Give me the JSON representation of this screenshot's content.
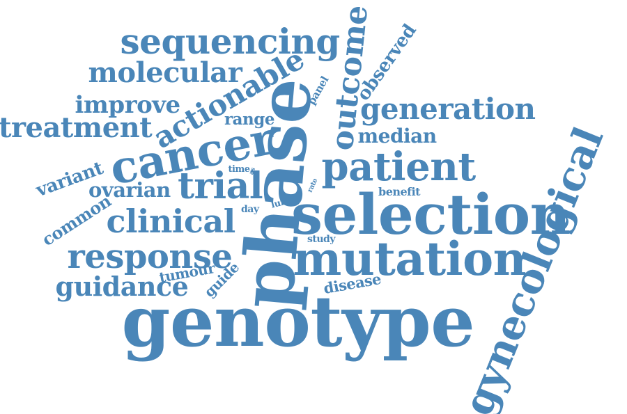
{
  "color": "#4a86b8",
  "words": [
    {
      "key": "genotype",
      "text": "genotype"
    },
    {
      "key": "selection",
      "text": "selection"
    },
    {
      "key": "phase",
      "text": "phase"
    },
    {
      "key": "mutation",
      "text": "mutation"
    },
    {
      "key": "gynecological",
      "text": "gynecological"
    },
    {
      "key": "cancer",
      "text": "cancer"
    },
    {
      "key": "patient",
      "text": "patient"
    },
    {
      "key": "sequencing",
      "text": "sequencing"
    },
    {
      "key": "response",
      "text": "response"
    },
    {
      "key": "trial",
      "text": "trial"
    },
    {
      "key": "clinical",
      "text": "clinical"
    },
    {
      "key": "actionable",
      "text": "actionable"
    },
    {
      "key": "outcome",
      "text": "outcome"
    },
    {
      "key": "generation",
      "text": "generation"
    },
    {
      "key": "molecular",
      "text": "molecular"
    },
    {
      "key": "treatment",
      "text": "treatment"
    },
    {
      "key": "guidance",
      "text": "guidance"
    },
    {
      "key": "improve",
      "text": "improve"
    },
    {
      "key": "ovarian",
      "text": "ovarian"
    },
    {
      "key": "variant",
      "text": "variant"
    },
    {
      "key": "median",
      "text": "median"
    },
    {
      "key": "observed",
      "text": "observed"
    },
    {
      "key": "common",
      "text": "common"
    },
    {
      "key": "range",
      "text": "range"
    },
    {
      "key": "tumour",
      "text": "tumour"
    },
    {
      "key": "disease",
      "text": "disease"
    },
    {
      "key": "benefit",
      "text": "benefit"
    },
    {
      "key": "guide",
      "text": "guide"
    },
    {
      "key": "panel",
      "text": "panel"
    },
    {
      "key": "study",
      "text": "study"
    },
    {
      "key": "day",
      "text": "day"
    },
    {
      "key": "lung",
      "text": "lung"
    },
    {
      "key": "time",
      "text": "time"
    },
    {
      "key": "rate",
      "text": "rate"
    },
    {
      "key": "as",
      "text": "as"
    }
  ]
}
